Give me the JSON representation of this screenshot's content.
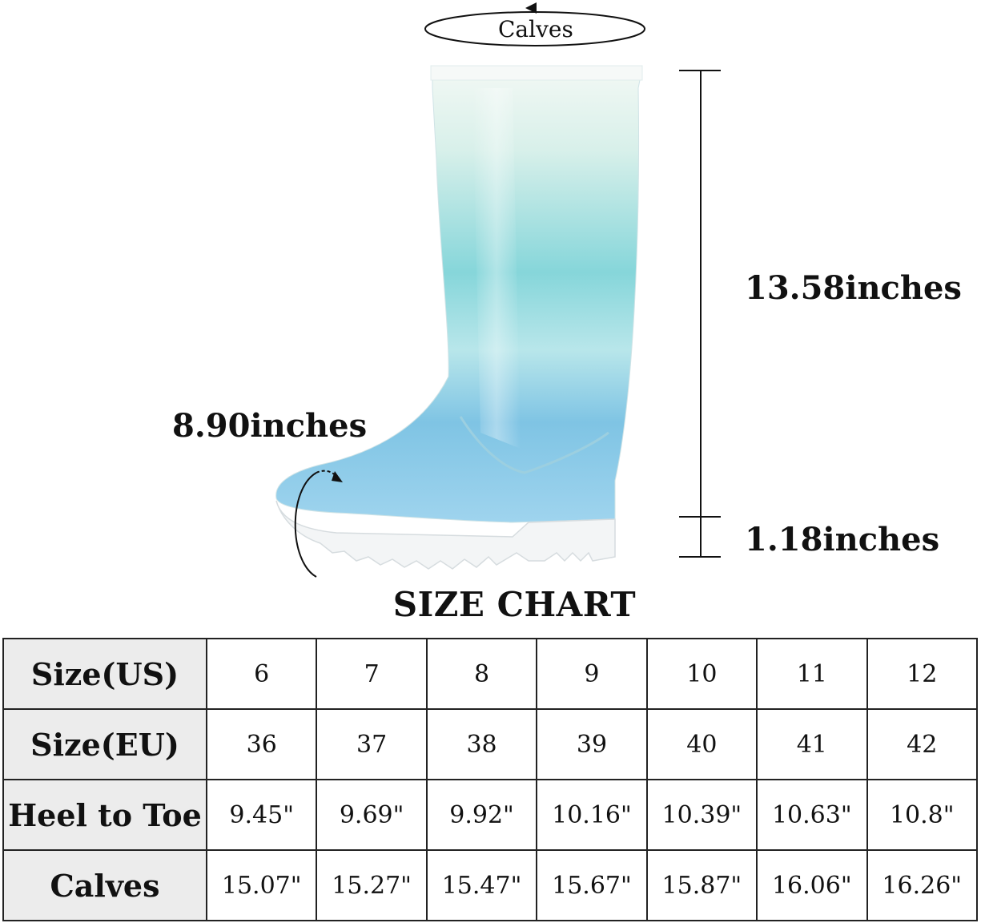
{
  "diagram": {
    "calves_label": "Calves",
    "shaft_height": "13.58inches",
    "heel_height": "1.18inches",
    "foot_circumference": "8.90inches",
    "boot_colors": {
      "top": "#eef6f2",
      "middle": "#7fd3d8",
      "lower": "#7cc3e6",
      "sole": "#f4f6f7"
    }
  },
  "title": "SIZE CHART",
  "table": {
    "rows": [
      {
        "header": "Size(US)",
        "cells": [
          "6",
          "7",
          "8",
          "9",
          "10",
          "11",
          "12"
        ]
      },
      {
        "header": "Size(EU)",
        "cells": [
          "36",
          "37",
          "38",
          "39",
          "40",
          "41",
          "42"
        ]
      },
      {
        "header": "Heel to Toe",
        "cells": [
          "9.45\"",
          "9.69\"",
          "9.92\"",
          "10.16\"",
          "10.39\"",
          "10.63\"",
          "10.8\""
        ]
      },
      {
        "header": "Calves",
        "cells": [
          "15.07\"",
          "15.27\"",
          "15.47\"",
          "15.67\"",
          "15.87\"",
          "16.06\"",
          "16.26\""
        ]
      }
    ]
  }
}
